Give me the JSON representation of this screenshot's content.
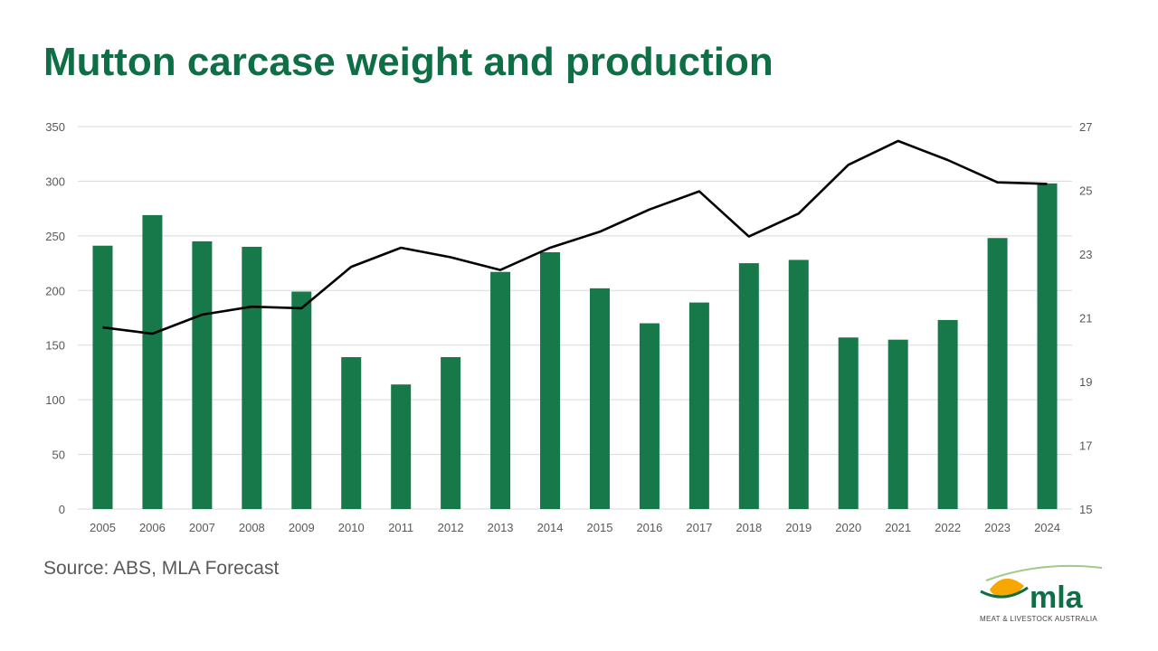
{
  "title": "Mutton carcase weight and production",
  "source": "Source: ABS, MLA Forecast",
  "brand": {
    "name": "mla",
    "tagline": "MEAT & LIVESTOCK AUSTRALIA",
    "color_green": "#0e6e45",
    "color_yellow": "#f7a800",
    "color_light_green": "#9ecb8a"
  },
  "chart_data": {
    "type": "bar",
    "categories": [
      "2005",
      "2006",
      "2007",
      "2008",
      "2009",
      "2010",
      "2011",
      "2012",
      "2013",
      "2014",
      "2015",
      "2016",
      "2017",
      "2018",
      "2019",
      "2020",
      "2021",
      "2022",
      "2023",
      "2024"
    ],
    "series": [
      {
        "type": "bar",
        "axis": "left",
        "color": "#17784a",
        "values": [
          241,
          269,
          245,
          240,
          199,
          139,
          114,
          139,
          217,
          235,
          202,
          170,
          189,
          225,
          228,
          157,
          155,
          173,
          248,
          298
        ]
      },
      {
        "type": "line",
        "axis": "right",
        "color": "#000000",
        "values": [
          20.7,
          20.5,
          21.1,
          21.35,
          21.3,
          22.6,
          23.2,
          22.9,
          22.5,
          23.2,
          23.7,
          24.4,
          24.97,
          23.55,
          24.27,
          25.8,
          26.55,
          25.95,
          25.25,
          25.2
        ]
      }
    ],
    "ylim": [
      0,
      350
    ],
    "yticks": [
      0,
      50,
      100,
      150,
      200,
      250,
      300,
      350
    ],
    "y2lim": [
      15,
      27
    ],
    "y2ticks": [
      15,
      17,
      19,
      21,
      23,
      25,
      27
    ],
    "grid": true,
    "gridColor": "#d9d9d9"
  }
}
